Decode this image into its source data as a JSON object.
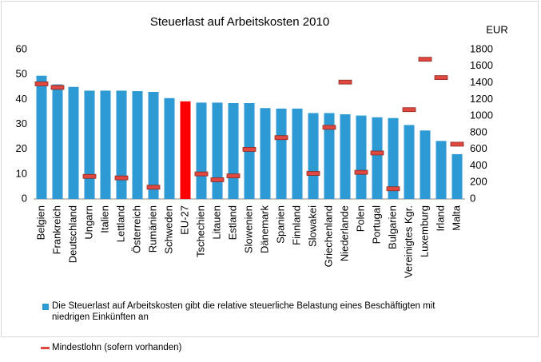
{
  "chart_data": {
    "type": "bar",
    "title": "Steuerlast auf Arbeitskosten 2010",
    "y2_label": "EUR",
    "categories": [
      "Belgien",
      "Frankreich",
      "Deutschland",
      "Ungarn",
      "Italien",
      "Lettland",
      "Österreich",
      "Rumänien",
      "Schweden",
      "EU-27",
      "Tschechien",
      "Litauen",
      "Estland",
      "Slowenien",
      "Dänemark",
      "Spanien",
      "Finnland",
      "Slowakei",
      "Griechenland",
      "Niederlande",
      "Polen",
      "Portugal",
      "Bulgarien",
      "Vereinigtes Kgr.",
      "Luxemburg",
      "Irland",
      "Malta"
    ],
    "series": [
      {
        "name": "Die Steuerlast auf Arbeitskosten gibt die relative steuerliche Belastung eines Beschäftigten mit niedrigen Einkünften an",
        "color": "#2e9ad4",
        "bar_colors": [
          "#2e9ad4",
          "#2e9ad4",
          "#2e9ad4",
          "#2e9ad4",
          "#2e9ad4",
          "#2e9ad4",
          "#2e9ad4",
          "#2e9ad4",
          "#2e9ad4",
          "#ff0000",
          "#2e9ad4",
          "#2e9ad4",
          "#2e9ad4",
          "#2e9ad4",
          "#2e9ad4",
          "#2e9ad4",
          "#2e9ad4",
          "#2e9ad4",
          "#2e9ad4",
          "#2e9ad4",
          "#2e9ad4",
          "#2e9ad4",
          "#2e9ad4",
          "#2e9ad4",
          "#2e9ad4",
          "#2e9ad4",
          "#2e9ad4"
        ],
        "values": [
          49.5,
          46,
          45,
          43.5,
          43.5,
          43.5,
          43.3,
          43,
          40.5,
          39.2,
          38.7,
          38.7,
          38.5,
          38.5,
          36.5,
          36.3,
          36.3,
          34.5,
          34.5,
          34,
          33.5,
          32.8,
          32.5,
          29.7,
          27.5,
          23.3,
          18
        ]
      },
      {
        "name": "Mindestlohn (sofern vorhanden)",
        "color": "#e0483f",
        "axis": "y2",
        "marker": "dash",
        "values": [
          1387,
          1344,
          null,
          272,
          null,
          254,
          null,
          142,
          null,
          null,
          302,
          232,
          278,
          597,
          null,
          739,
          null,
          308,
          863,
          1408,
          321,
          554,
          123,
          1076,
          1683,
          1462,
          660
        ]
      }
    ],
    "ylim": [
      0,
      60
    ],
    "yticks": [
      0,
      10,
      20,
      30,
      40,
      50,
      60
    ],
    "y2lim": [
      0,
      1800
    ],
    "y2ticks": [
      0,
      200,
      400,
      600,
      800,
      1000,
      1200,
      1400,
      1600,
      1800
    ],
    "grid": false
  }
}
